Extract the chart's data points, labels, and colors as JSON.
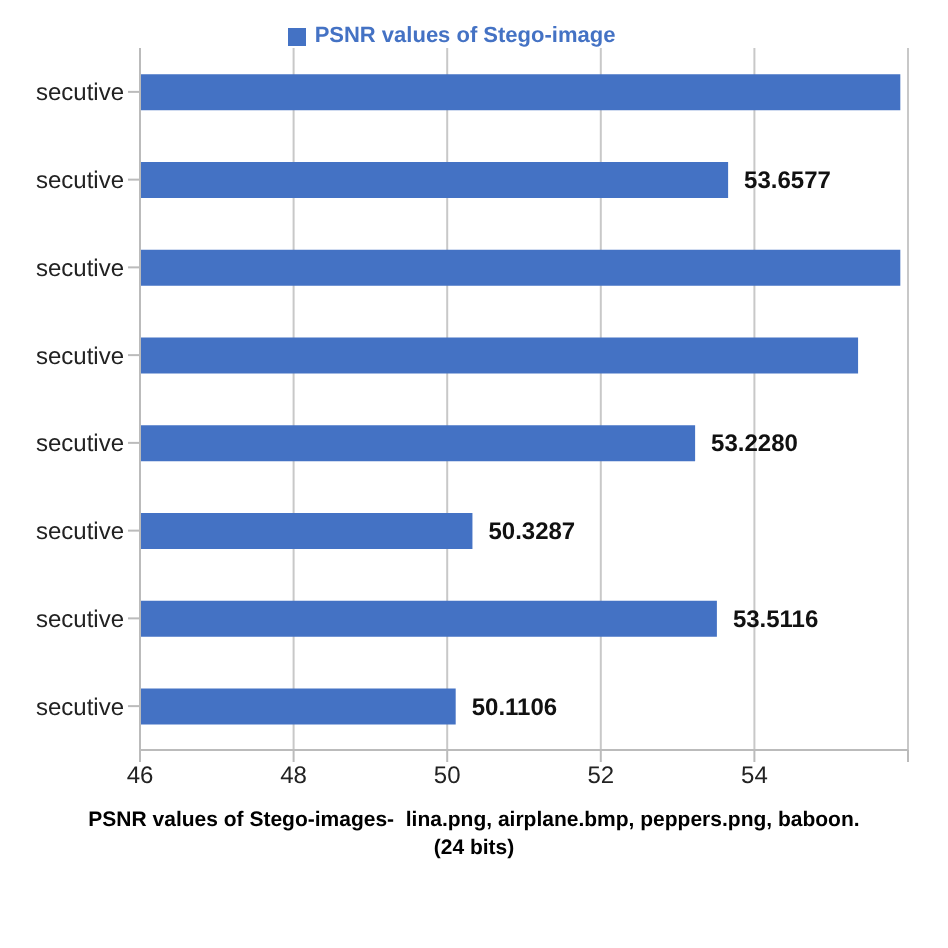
{
  "chart_data": {
    "type": "bar",
    "orientation": "horizontal",
    "legend": "top",
    "grid": "x",
    "xlabel": "PSNR values of Stego-images-  lina.png, airplane.bmp, peppers.png, baboon.\n(24 bits)",
    "categories": [
      "secutive",
      "secutive",
      "secutive",
      "secutive",
      "secutive",
      "secutive",
      "secutive",
      "secutive"
    ],
    "series": [
      {
        "name": "PSNR values of Stego-image",
        "color": "#4472c4",
        "values": [
          55.9,
          53.6577,
          55.9,
          55.35,
          53.228,
          50.3287,
          53.5116,
          50.1106
        ],
        "value_labels": [
          null,
          "53.6577",
          null,
          null,
          "53.2280",
          "50.3287",
          "53.5116",
          "50.1106"
        ]
      }
    ],
    "xlim": [
      46,
      56
    ],
    "xticks": [
      46,
      48,
      50,
      52,
      54,
      {
        "value": 56,
        "label": null
      }
    ]
  }
}
